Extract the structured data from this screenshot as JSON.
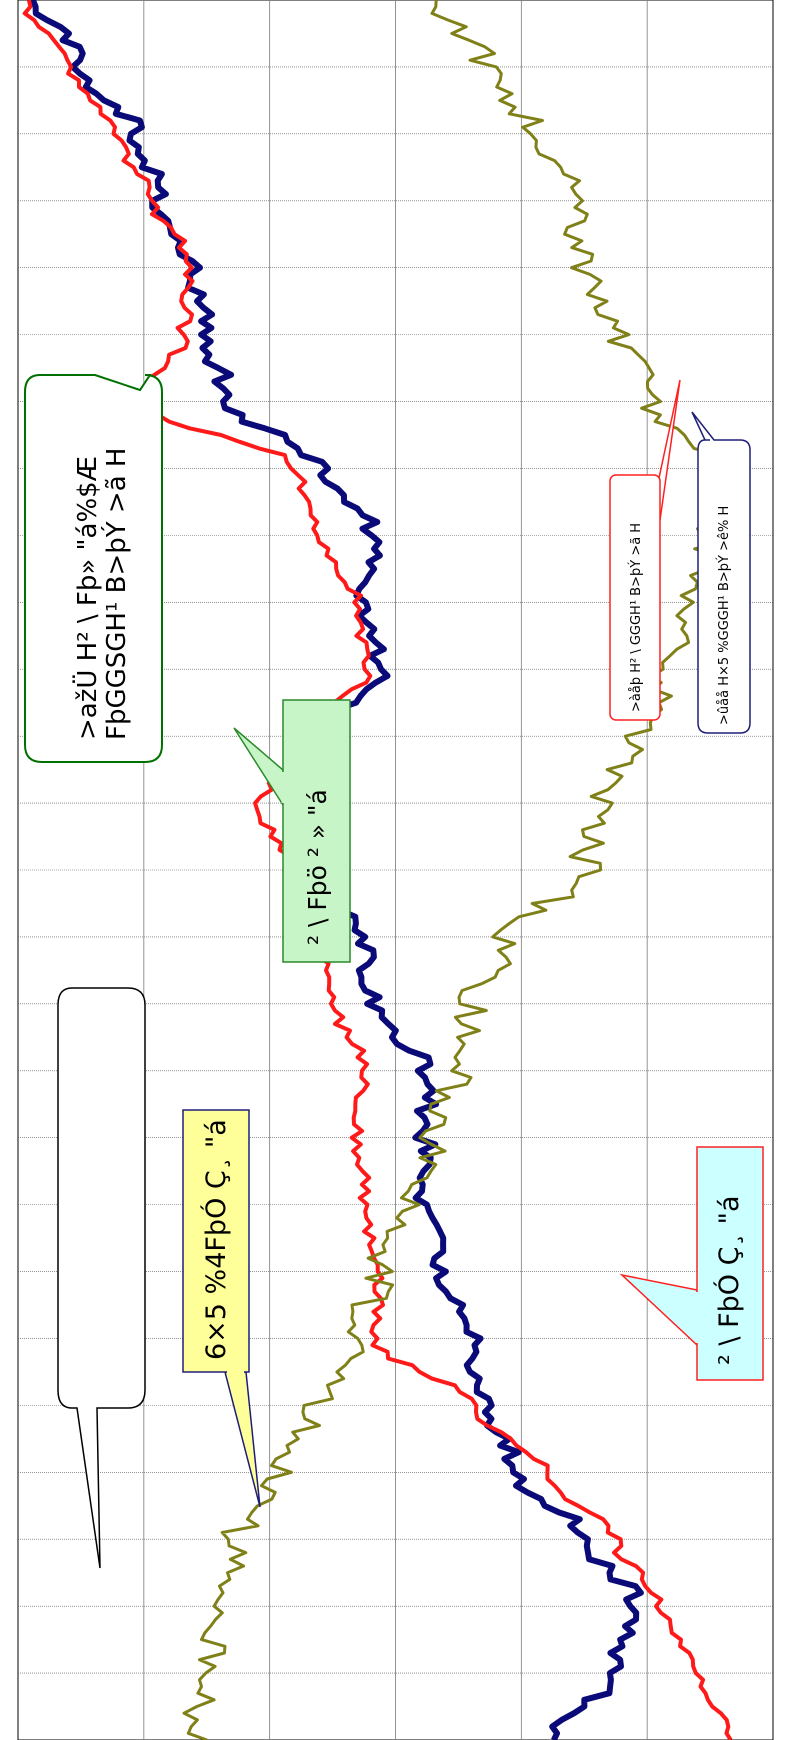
{
  "colors": {
    "navy": "#0a0a78",
    "red": "#ff1a1a",
    "olive": "#808018",
    "grid_major": "#555555",
    "grid_minor": "#7a7a7a",
    "green_box": "#c8f5c8",
    "yellow_box": "#ffff99",
    "cyan_box": "#ccffff"
  },
  "callouts": {
    "c1": {
      "line1": ">ažÜ H² \\ Fþ» \"á%$Æ",
      "line2": "FþGGSGH¹ B>þÝ >ã H"
    },
    "c2": {
      "text": "² \\ Fþö ² » \"á"
    },
    "c3": {
      "text": "6×5 %4FþÓ Ç¸ \"á"
    },
    "c4": {
      "text": "² \\ FþÓ Ç¸ \"á"
    },
    "c5": {
      "text": ">àåþ H² \\ GGGH¹ B>þÝ >ã H"
    },
    "c6": {
      "text": ">ûåå H×5 %GGGH¹ B>þÝ >ê% H"
    },
    "c7": {
      "text": ""
    }
  },
  "chart_data": {
    "type": "line",
    "orientation": "rotated-90",
    "grid": true,
    "ylim": [
      0,
      100
    ],
    "x": [
      0,
      0.5,
      1,
      1.5,
      2,
      2.5,
      3,
      3.5,
      4,
      4.5,
      5,
      5.5,
      6,
      6.5,
      7,
      7.5,
      8,
      8.5,
      9,
      9.5,
      10,
      10.5,
      11,
      11.5,
      12,
      12.5,
      13
    ],
    "series": [
      {
        "color": "navy",
        "values": [
          71,
          79,
          82,
          75,
          66,
          62,
          60,
          56,
          54,
          54,
          54,
          47,
          46,
          40,
          42,
          41,
          48,
          45,
          47,
          40,
          28,
          25,
          23,
          19,
          16,
          8,
          3
        ]
      },
      {
        "color": "red",
        "values": [
          94,
          90,
          85,
          79,
          70,
          60,
          47,
          48,
          46,
          45,
          46,
          42,
          40,
          36,
          32,
          39,
          46,
          45,
          40,
          37,
          16,
          22,
          23,
          18,
          13,
          7,
          1
        ]
      },
      {
        "color": "olive",
        "values": [
          23,
          25,
          27,
          29,
          35,
          40,
          44,
          48,
          52,
          55,
          58,
          60,
          65,
          75,
          77,
          82,
          86,
          89,
          92,
          94,
          83,
          80,
          75,
          74,
          68,
          62,
          56
        ]
      }
    ]
  }
}
